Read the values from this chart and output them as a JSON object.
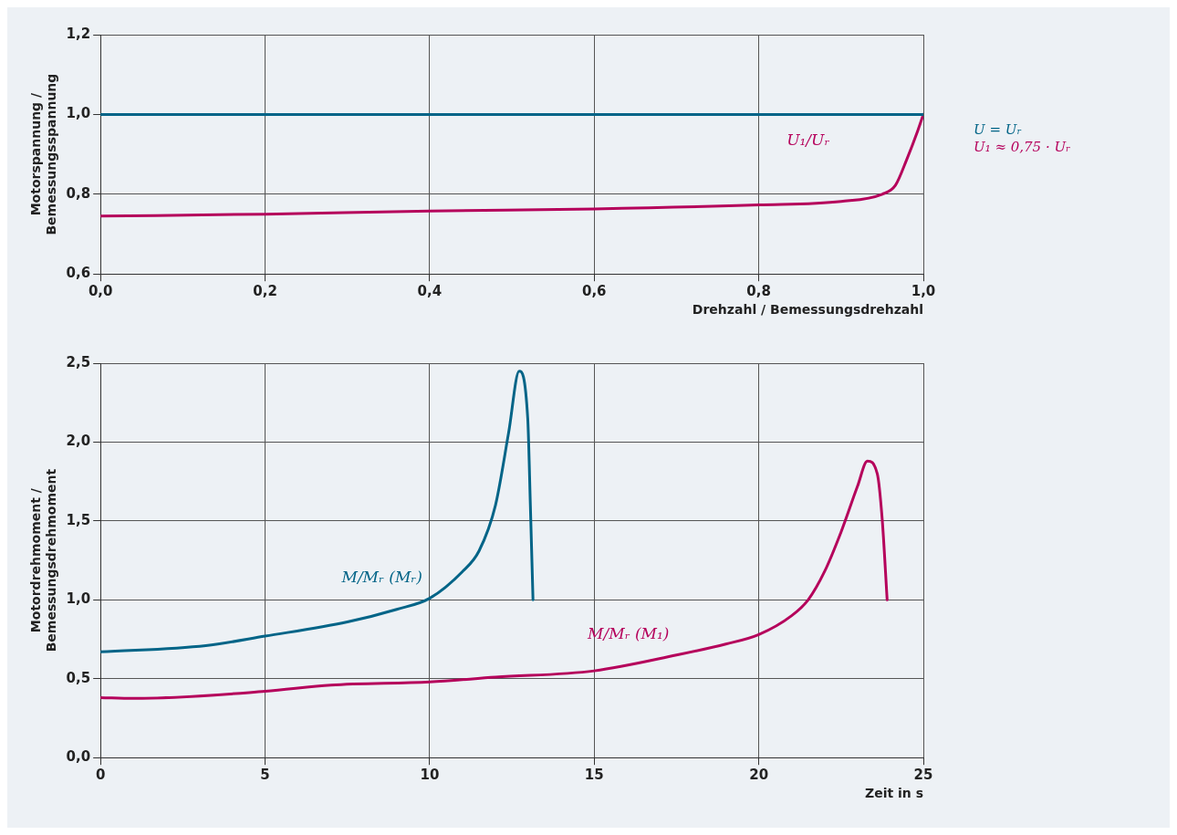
{
  "chart_data": [
    {
      "type": "line",
      "xlabel": "Drehzahl / Bemessungsdrehzahl",
      "ylabel": "Motorspannung / Bemessungsspannung",
      "xlim": [
        0,
        1
      ],
      "xticks": [
        {
          "value": 0,
          "label": "0,0"
        },
        {
          "value": 0.2,
          "label": "0,2"
        },
        {
          "value": 0.4,
          "label": "0,4"
        },
        {
          "value": 0.6,
          "label": "0,6"
        },
        {
          "value": 0.8,
          "label": "0,8"
        },
        {
          "value": 1,
          "label": "1,0"
        }
      ],
      "ylim": [
        0.6,
        1.2
      ],
      "yticks": [
        {
          "value": 0.6,
          "label": "0,6"
        },
        {
          "value": 0.8,
          "label": "0,8"
        },
        {
          "value": 1,
          "label": "1,0"
        },
        {
          "value": 1.2,
          "label": "1,2"
        }
      ],
      "grid": true,
      "legend": "right",
      "marker": "none",
      "series": [
        {
          "name": "U = Uᵣ",
          "color": "#006487",
          "x": [
            0,
            1
          ],
          "values": [
            1,
            1
          ]
        },
        {
          "name": "U₁ ≈ 0,75 · Uᵣ",
          "color": "#b5005b",
          "x": [
            0,
            0.2,
            0.4,
            0.6,
            0.8,
            0.9,
            0.95,
            0.966,
            0.98,
            0.993,
            1
          ],
          "values": [
            0.745,
            0.75,
            0.758,
            0.763,
            0.773,
            0.782,
            0.8,
            0.822,
            0.888,
            0.958,
            1
          ]
        }
      ],
      "annotations": [
        "U₁/Uᵣ"
      ]
    },
    {
      "type": "line",
      "xlabel": "Zeit in s",
      "ylabel": "Motordrehmoment / Bemessungsdrehmoment",
      "xlim": [
        0,
        25
      ],
      "xticks": [
        0,
        5,
        10,
        15,
        20,
        25
      ],
      "ylim": [
        0,
        2.5
      ],
      "yticks": [
        {
          "value": 0,
          "label": "0,0"
        },
        {
          "value": 0.5,
          "label": "0,5"
        },
        {
          "value": 1,
          "label": "1,0"
        },
        {
          "value": 1.5,
          "label": "1,5"
        },
        {
          "value": 2,
          "label": "2,0"
        },
        {
          "value": 2.5,
          "label": "2,5"
        }
      ],
      "grid": true,
      "marker": "none",
      "series": [
        {
          "name": "M/Mᵣ (Mᵣ)",
          "color": "#006487",
          "x": [
            0,
            3.2,
            5,
            7.5,
            9,
            10,
            11,
            11.5,
            12,
            12.4,
            12.72,
            12.98,
            13.06,
            13.14
          ],
          "values": [
            0.67,
            0.71,
            0.77,
            0.86,
            0.94,
            1.01,
            1.18,
            1.31,
            1.6,
            2.06,
            2.45,
            2.15,
            1.6,
            1
          ]
        },
        {
          "name": "M/Mᵣ (M₁)",
          "color": "#b5005b",
          "x": [
            0,
            1,
            5,
            7,
            10,
            12,
            15,
            17.5,
            19,
            20,
            21,
            21.5,
            22,
            22.5,
            23,
            23.3,
            23.6,
            23.75,
            23.9
          ],
          "values": [
            0.38,
            0.375,
            0.42,
            0.46,
            0.48,
            0.51,
            0.55,
            0.65,
            0.72,
            0.78,
            0.9,
            1,
            1.18,
            1.43,
            1.72,
            1.88,
            1.8,
            1.51,
            1
          ]
        }
      ]
    }
  ]
}
